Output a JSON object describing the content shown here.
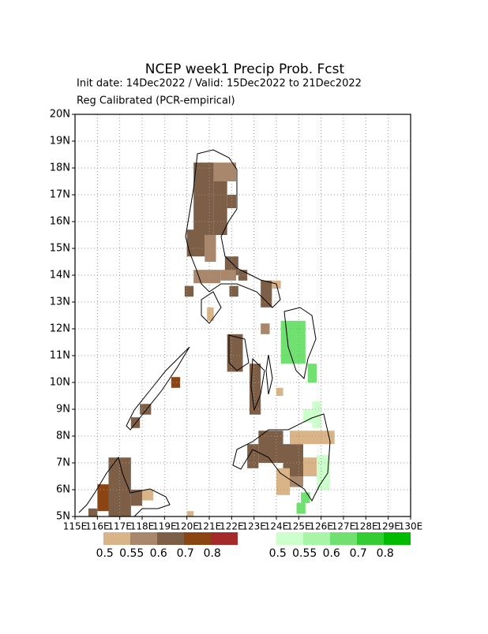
{
  "chart_data": {
    "type": "grid-map",
    "title": "NCEP week1 Precip Prob. Fcst",
    "subtitle": "Init date: 14Dec2022 / Valid: 15Dec2022 to 21Dec2022",
    "note": "Reg Calibrated (PCR-empirical)",
    "xlim": [
      115,
      130
    ],
    "ylim": [
      5,
      20
    ],
    "xticks": [
      {
        "value": 115,
        "label": "115E"
      },
      {
        "value": 116,
        "label": "116E"
      },
      {
        "value": 117,
        "label": "117E"
      },
      {
        "value": 118,
        "label": "118E"
      },
      {
        "value": 119,
        "label": "119E"
      },
      {
        "value": 120,
        "label": "120E"
      },
      {
        "value": 121,
        "label": "121E"
      },
      {
        "value": 122,
        "label": "122E"
      },
      {
        "value": 123,
        "label": "123E"
      },
      {
        "value": 124,
        "label": "124E"
      },
      {
        "value": 125,
        "label": "125E"
      },
      {
        "value": 126,
        "label": "126E"
      },
      {
        "value": 127,
        "label": "127E"
      },
      {
        "value": 128,
        "label": "128E"
      },
      {
        "value": 129,
        "label": "129E"
      },
      {
        "value": 130,
        "label": "130E"
      }
    ],
    "yticks": [
      {
        "value": 5,
        "label": "5N"
      },
      {
        "value": 6,
        "label": "6N"
      },
      {
        "value": 7,
        "label": "7N"
      },
      {
        "value": 8,
        "label": "8N"
      },
      {
        "value": 9,
        "label": "9N"
      },
      {
        "value": 10,
        "label": "10N"
      },
      {
        "value": 11,
        "label": "11N"
      },
      {
        "value": 12,
        "label": "12N"
      },
      {
        "value": 13,
        "label": "13N"
      },
      {
        "value": 14,
        "label": "14N"
      },
      {
        "value": 15,
        "label": "15N"
      },
      {
        "value": 16,
        "label": "16N"
      },
      {
        "value": 17,
        "label": "17N"
      },
      {
        "value": 18,
        "label": "18N"
      },
      {
        "value": 19,
        "label": "19N"
      },
      {
        "value": 20,
        "label": "20N"
      }
    ],
    "grid": true,
    "below_legend": {
      "levels": [
        0.5,
        0.55,
        0.6,
        0.7,
        0.8
      ],
      "colors": [
        "#d8b488",
        "#a8876c",
        "#7d5f48",
        "#8b4513",
        "#a52a2a"
      ]
    },
    "above_legend": {
      "levels": [
        0.5,
        0.55,
        0.6,
        0.7,
        0.8
      ],
      "colors": [
        "#ccffcc",
        "#a8f5a8",
        "#70e070",
        "#33cc33",
        "#00bb00"
      ]
    },
    "below_cells": [
      {
        "lon": [
          120.3,
          121.2
        ],
        "lat": [
          15.5,
          18.2
        ],
        "level": 0.6
      },
      {
        "lon": [
          121.2,
          122.2
        ],
        "lat": [
          17.5,
          18.2
        ],
        "level": 0.55
      },
      {
        "lon": [
          121.2,
          121.8
        ],
        "lat": [
          15.5,
          17.5
        ],
        "level": 0.6
      },
      {
        "lon": [
          121.8,
          122.2
        ],
        "lat": [
          16.5,
          17
        ],
        "level": 0.6
      },
      {
        "lon": [
          120,
          120.8
        ],
        "lat": [
          14.7,
          15.7
        ],
        "level": 0.6
      },
      {
        "lon": [
          120.8,
          121.3
        ],
        "lat": [
          14.5,
          15.5
        ],
        "level": 0.55
      },
      {
        "lon": [
          121.7,
          122.3
        ],
        "lat": [
          14,
          14.7
        ],
        "level": 0.6
      },
      {
        "lon": [
          120.3,
          121.5
        ],
        "lat": [
          13.7,
          14.2
        ],
        "level": 0.55
      },
      {
        "lon": [
          121.5,
          122.2
        ],
        "lat": [
          13.8,
          14.2
        ],
        "level": 0.55
      },
      {
        "lon": [
          121.9,
          122.3
        ],
        "lat": [
          13.2,
          13.6
        ],
        "level": 0.6
      },
      {
        "lon": [
          122.3,
          122.7
        ],
        "lat": [
          13.8,
          14.2
        ],
        "level": 0.6
      },
      {
        "lon": [
          119.9,
          120.3
        ],
        "lat": [
          13.2,
          13.6
        ],
        "level": 0.6
      },
      {
        "lon": [
          120.9,
          121.2
        ],
        "lat": [
          12.3,
          12.8
        ],
        "level": 0.5
      },
      {
        "lon": [
          123.3,
          123.8
        ],
        "lat": [
          12.8,
          13.8
        ],
        "level": 0.6
      },
      {
        "lon": [
          123.8,
          124.2
        ],
        "lat": [
          13.5,
          13.8
        ],
        "level": 0.5
      },
      {
        "lon": [
          123.3,
          123.7
        ],
        "lat": [
          11.8,
          12.2
        ],
        "level": 0.55
      },
      {
        "lon": [
          121.8,
          122.5
        ],
        "lat": [
          10.4,
          11.8
        ],
        "level": 0.6
      },
      {
        "lon": [
          122.8,
          123.3
        ],
        "lat": [
          8.8,
          10.7
        ],
        "level": 0.6
      },
      {
        "lon": [
          124,
          124.3
        ],
        "lat": [
          9.5,
          9.8
        ],
        "level": 0.5
      },
      {
        "lon": [
          119.3,
          119.7
        ],
        "lat": [
          9.8,
          10.2
        ],
        "level": 0.7
      },
      {
        "lon": [
          117.9,
          118.4
        ],
        "lat": [
          8.8,
          9.2
        ],
        "level": 0.6
      },
      {
        "lon": [
          117.5,
          117.9
        ],
        "lat": [
          8.3,
          8.7
        ],
        "level": 0.6
      },
      {
        "lon": [
          122.7,
          123.2
        ],
        "lat": [
          6.8,
          7.7
        ],
        "level": 0.6
      },
      {
        "lon": [
          123.2,
          124.3
        ],
        "lat": [
          7,
          8.2
        ],
        "level": 0.6
      },
      {
        "lon": [
          124.3,
          125.2
        ],
        "lat": [
          6.5,
          7.7
        ],
        "level": 0.6
      },
      {
        "lon": [
          124.6,
          125.2
        ],
        "lat": [
          6.1,
          6.5
        ],
        "level": 0.55
      },
      {
        "lon": [
          124,
          124.6
        ],
        "lat": [
          5.8,
          6.8
        ],
        "level": 0.5
      },
      {
        "lon": [
          124.6,
          125.8
        ],
        "lat": [
          7.7,
          8.2
        ],
        "level": 0.5
      },
      {
        "lon": [
          125.2,
          126
        ],
        "lat": [
          6.5,
          7.2
        ],
        "level": 0.5
      },
      {
        "lon": [
          125.8,
          126.6
        ],
        "lat": [
          7.7,
          8.2
        ],
        "level": 0.5
      },
      {
        "lon": [
          116.5,
          117.5
        ],
        "lat": [
          5,
          7.2
        ],
        "level": 0.6
      },
      {
        "lon": [
          117.5,
          118
        ],
        "lat": [
          5.4,
          6
        ],
        "level": 0.6
      },
      {
        "lon": [
          118,
          118.5
        ],
        "lat": [
          5.6,
          6
        ],
        "level": 0.5
      },
      {
        "lon": [
          116,
          116.5
        ],
        "lat": [
          5.2,
          6.2
        ],
        "level": 0.7
      },
      {
        "lon": [
          115.6,
          116
        ],
        "lat": [
          5,
          5.3
        ],
        "level": 0.6
      },
      {
        "lon": [
          120,
          120.3
        ],
        "lat": [
          5,
          5.2
        ],
        "level": 0.5
      }
    ],
    "above_cells": [
      {
        "lon": [
          124.2,
          125.3
        ],
        "lat": [
          10.7,
          12.3
        ],
        "level": 0.6
      },
      {
        "lon": [
          125.4,
          125.8
        ],
        "lat": [
          10,
          10.7
        ],
        "level": 0.6
      },
      {
        "lon": [
          125.6,
          126
        ],
        "lat": [
          8.3,
          9.3
        ],
        "level": 0.5
      },
      {
        "lon": [
          125.2,
          125.6
        ],
        "lat": [
          8.5,
          9
        ],
        "level": 0.5
      },
      {
        "lon": [
          125.8,
          126.4
        ],
        "lat": [
          6,
          7.3
        ],
        "level": 0.5
      },
      {
        "lon": [
          125.1,
          125.5
        ],
        "lat": [
          5.5,
          5.9
        ],
        "level": 0.6
      },
      {
        "lon": [
          124.9,
          125.3
        ],
        "lat": [
          5.1,
          5.5
        ],
        "level": 0.6
      }
    ]
  }
}
